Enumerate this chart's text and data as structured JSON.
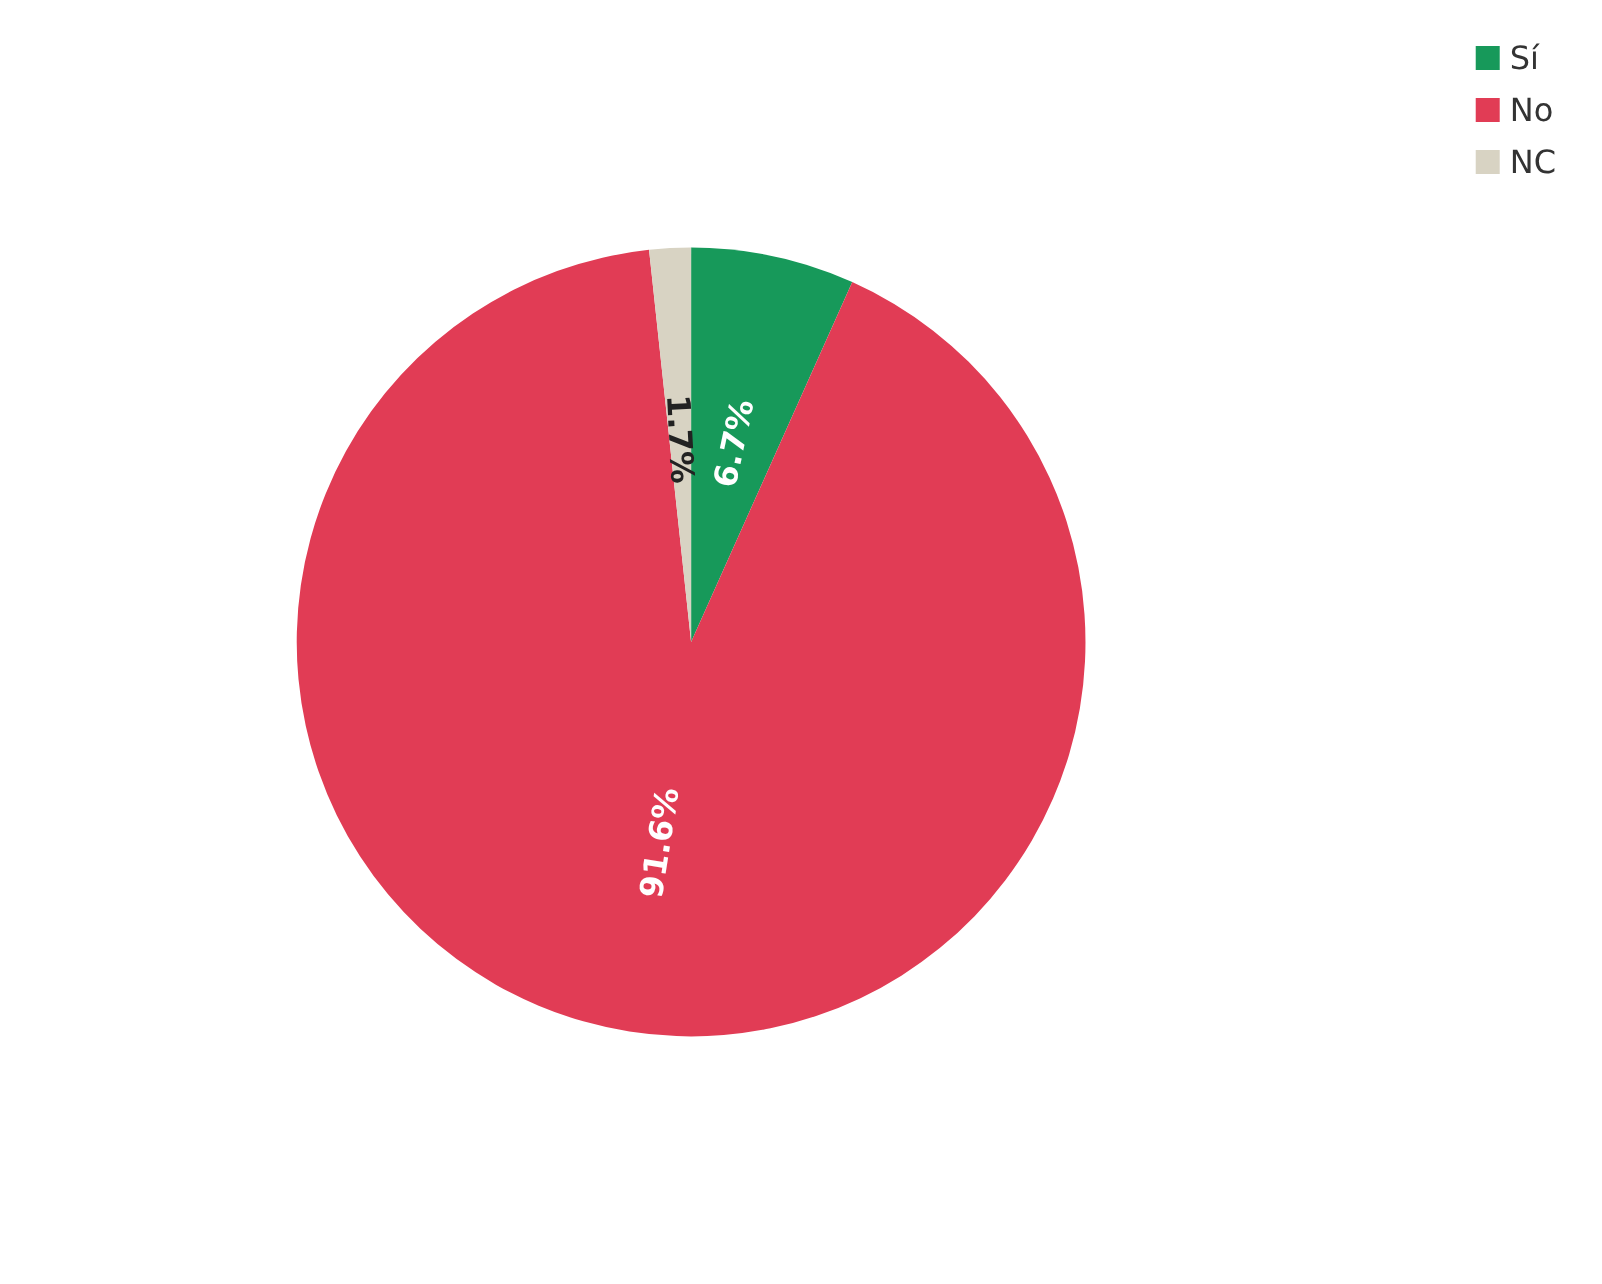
{
  "chart_data": {
    "type": "pie",
    "categories": [
      "Sí",
      "No",
      "NC"
    ],
    "values": [
      6.7,
      91.6,
      1.7
    ],
    "colors": [
      "#17995a",
      "#e13c55",
      "#d8d3c3"
    ],
    "value_labels": [
      "6.7%",
      "91.6%",
      "1.7%"
    ],
    "legend": "top right"
  }
}
